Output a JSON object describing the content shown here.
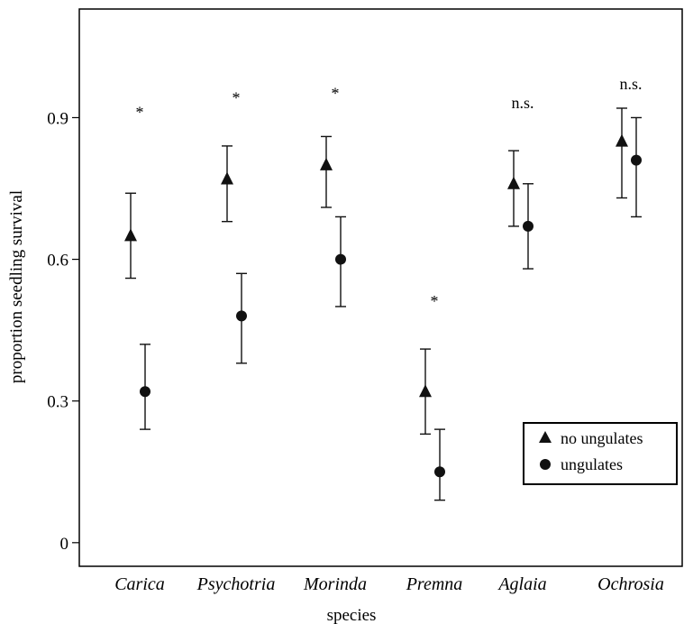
{
  "chart_data": {
    "type": "scatter",
    "xlabel": "species",
    "ylabel": "proportion seedling survival",
    "categories": [
      "Carica",
      "Psychotria",
      "Morinda",
      "Premna",
      "Aglaia",
      "Ochrosia"
    ],
    "yticks": [
      "0",
      "0.3",
      "0.6",
      "0.9"
    ],
    "ytick_values": [
      0,
      0.3,
      0.6,
      0.9
    ],
    "ylim": [
      -0.05,
      1.13
    ],
    "annotations": [
      "*",
      "*",
      "*",
      "*",
      "n.s.",
      "n.s."
    ],
    "annotation_y": [
      0.9,
      0.93,
      0.94,
      0.5,
      0.92,
      0.96
    ],
    "series": [
      {
        "name": "no ungulates",
        "marker": "triangle",
        "values": [
          0.65,
          0.77,
          0.8,
          0.32,
          0.76,
          0.85
        ],
        "lower": [
          0.56,
          0.68,
          0.71,
          0.23,
          0.67,
          0.73
        ],
        "upper": [
          0.74,
          0.84,
          0.86,
          0.41,
          0.83,
          0.92
        ]
      },
      {
        "name": "ungulates",
        "marker": "circle",
        "values": [
          0.32,
          0.48,
          0.6,
          0.15,
          0.67,
          0.81
        ],
        "lower": [
          0.24,
          0.38,
          0.5,
          0.09,
          0.58,
          0.69
        ],
        "upper": [
          0.42,
          0.57,
          0.69,
          0.24,
          0.76,
          0.9
        ]
      }
    ],
    "legend_position": "bottom-right",
    "grid": false
  }
}
